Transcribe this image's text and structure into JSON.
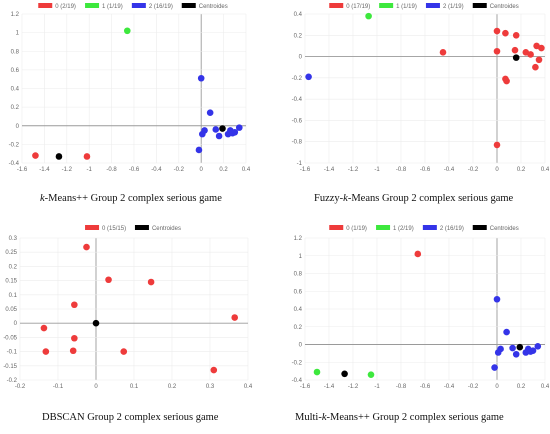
{
  "chart_data": [
    {
      "type": "scatter",
      "caption_parts": [
        {
          "text": "k",
          "italic": true
        },
        {
          "text": "-Means++ Group 2 complex serious game",
          "italic": false
        }
      ],
      "legend": [
        {
          "label": "0 (2/19)",
          "color": "#ee3b3b"
        },
        {
          "label": "1 (1/19)",
          "color": "#3de83d"
        },
        {
          "label": "2 (16/19)",
          "color": "#3434e8"
        },
        {
          "label": "Centroides",
          "color": "#000000"
        }
      ],
      "xlim": [
        -1.6,
        0.4
      ],
      "ylim": [
        -0.4,
        1.2
      ],
      "xticks": [
        -1.6,
        -1.4,
        -1.2,
        -1.0,
        -0.8,
        -0.6,
        -0.4,
        -0.2,
        0,
        0.2,
        0.4
      ],
      "yticks": [
        -0.4,
        -0.2,
        0,
        0.2,
        0.4,
        0.6,
        0.8,
        1.0,
        1.2
      ],
      "xtick_labels": [
        "-1.6",
        "-1.4",
        "-1.2",
        "-1",
        "-0.8",
        "-0.6",
        "-0.4",
        "-0.2",
        "0",
        "0.2",
        "0.4"
      ],
      "ytick_labels": [
        "-0.4",
        "-0.2",
        "0",
        "0.2",
        "0.4",
        "0.6",
        "0.8",
        "1",
        "1.2"
      ],
      "points": [
        {
          "x": -1.48,
          "y": -0.32,
          "c": 0
        },
        {
          "x": -1.02,
          "y": -0.33,
          "c": 0
        },
        {
          "x": -0.66,
          "y": 1.02,
          "c": 1
        },
        {
          "x": 0.0,
          "y": 0.51,
          "c": 2
        },
        {
          "x": 0.08,
          "y": 0.14,
          "c": 2
        },
        {
          "x": 0.03,
          "y": -0.05,
          "c": 2
        },
        {
          "x": 0.01,
          "y": -0.09,
          "c": 2
        },
        {
          "x": -0.02,
          "y": -0.26,
          "c": 2
        },
        {
          "x": 0.13,
          "y": -0.04,
          "c": 2
        },
        {
          "x": 0.16,
          "y": -0.11,
          "c": 2
        },
        {
          "x": 0.24,
          "y": -0.09,
          "c": 2
        },
        {
          "x": 0.26,
          "y": -0.05,
          "c": 2
        },
        {
          "x": 0.3,
          "y": -0.07,
          "c": 2
        },
        {
          "x": 0.34,
          "y": -0.02,
          "c": 2
        },
        {
          "x": 0.28,
          "y": -0.08,
          "c": 2
        }
      ],
      "centroids": [
        {
          "x": -1.27,
          "y": -0.33
        },
        {
          "x": 0.19,
          "y": -0.03
        }
      ]
    },
    {
      "type": "scatter",
      "caption_parts": [
        {
          "text": "Fuzzy-",
          "italic": false
        },
        {
          "text": "k",
          "italic": true
        },
        {
          "text": "-Means Group 2 complex serious game",
          "italic": false
        }
      ],
      "legend": [
        {
          "label": "0 (17/19)",
          "color": "#ee3b3b"
        },
        {
          "label": "1 (1/19)",
          "color": "#3de83d"
        },
        {
          "label": "2 (1/19)",
          "color": "#3434e8"
        },
        {
          "label": "Centroides",
          "color": "#000000"
        }
      ],
      "xlim": [
        -1.6,
        0.4
      ],
      "ylim": [
        -1.0,
        0.4
      ],
      "xticks": [
        -1.6,
        -1.4,
        -1.2,
        -1.0,
        -0.8,
        -0.6,
        -0.4,
        -0.2,
        0,
        0.2,
        0.4
      ],
      "yticks": [
        -1.0,
        -0.8,
        -0.6,
        -0.4,
        -0.2,
        0,
        0.2,
        0.4
      ],
      "xtick_labels": [
        "-1.6",
        "-1.4",
        "-1.2",
        "-1",
        "-0.8",
        "-0.6",
        "-0.4",
        "-0.2",
        "0",
        "0.2",
        "0.4"
      ],
      "ytick_labels": [
        "-1",
        "-0.8",
        "-0.6",
        "-0.4",
        "-0.2",
        "0",
        "0.2",
        "0.4"
      ],
      "points": [
        {
          "x": -1.57,
          "y": -0.19,
          "c": 2
        },
        {
          "x": -1.07,
          "y": 0.38,
          "c": 1
        },
        {
          "x": -0.45,
          "y": 0.04,
          "c": 0
        },
        {
          "x": 0.0,
          "y": 0.24,
          "c": 0
        },
        {
          "x": 0.07,
          "y": 0.22,
          "c": 0
        },
        {
          "x": 0.16,
          "y": 0.2,
          "c": 0
        },
        {
          "x": 0.0,
          "y": 0.05,
          "c": 0
        },
        {
          "x": 0.15,
          "y": 0.06,
          "c": 0
        },
        {
          "x": 0.24,
          "y": 0.04,
          "c": 0
        },
        {
          "x": 0.28,
          "y": 0.02,
          "c": 0
        },
        {
          "x": 0.33,
          "y": 0.1,
          "c": 0
        },
        {
          "x": 0.37,
          "y": 0.08,
          "c": 0
        },
        {
          "x": 0.35,
          "y": -0.03,
          "c": 0
        },
        {
          "x": 0.32,
          "y": -0.1,
          "c": 0
        },
        {
          "x": 0.07,
          "y": -0.21,
          "c": 0
        },
        {
          "x": 0.08,
          "y": -0.23,
          "c": 0
        },
        {
          "x": 0.0,
          "y": -0.83,
          "c": 0
        }
      ],
      "centroids": [
        {
          "x": 0.16,
          "y": -0.01
        }
      ]
    },
    {
      "type": "scatter",
      "caption_parts": [
        {
          "text": "DBSCAN Group 2 complex serious game",
          "italic": false
        }
      ],
      "legend": [
        {
          "label": "0 (15/15)",
          "color": "#ee3b3b"
        },
        {
          "label": "Centroides",
          "color": "#000000"
        }
      ],
      "xlim": [
        -0.2,
        0.4
      ],
      "ylim": [
        -0.2,
        0.3
      ],
      "xticks": [
        -0.2,
        -0.1,
        0,
        0.1,
        0.2,
        0.3,
        0.4
      ],
      "yticks": [
        -0.2,
        -0.15,
        -0.1,
        -0.05,
        0,
        0.05,
        0.1,
        0.15,
        0.2,
        0.25,
        0.3
      ],
      "xtick_labels": [
        "-0.2",
        "-0.1",
        "0",
        "0.1",
        "0.2",
        "0.3",
        "0.4"
      ],
      "ytick_labels": [
        "-0.2",
        "-0.15",
        "-0.1",
        "-0.05",
        "0",
        "0.05",
        "0.1",
        "0.15",
        "0.2",
        "0.25",
        "0.3"
      ],
      "points": [
        {
          "x": -0.025,
          "y": 0.268,
          "c": 0
        },
        {
          "x": 0.033,
          "y": 0.153,
          "c": 0
        },
        {
          "x": 0.145,
          "y": 0.145,
          "c": 0
        },
        {
          "x": -0.057,
          "y": 0.065,
          "c": 0
        },
        {
          "x": 0.365,
          "y": 0.02,
          "c": 0
        },
        {
          "x": -0.137,
          "y": -0.017,
          "c": 0
        },
        {
          "x": -0.057,
          "y": -0.053,
          "c": 0
        },
        {
          "x": -0.132,
          "y": -0.1,
          "c": 0
        },
        {
          "x": -0.06,
          "y": -0.097,
          "c": 0
        },
        {
          "x": 0.073,
          "y": -0.1,
          "c": 0
        },
        {
          "x": 0.31,
          "y": -0.165,
          "c": 0
        }
      ],
      "centroids": [
        {
          "x": 0.0,
          "y": 0.0
        }
      ]
    },
    {
      "type": "scatter",
      "caption_parts": [
        {
          "text": "Multi-",
          "italic": false
        },
        {
          "text": "k",
          "italic": true
        },
        {
          "text": "-Means++ Group 2 complex serious game",
          "italic": false
        }
      ],
      "legend": [
        {
          "label": "0 (1/19)",
          "color": "#ee3b3b"
        },
        {
          "label": "1 (2/19)",
          "color": "#3de83d"
        },
        {
          "label": "2 (16/19)",
          "color": "#3434e8"
        },
        {
          "label": "Centroides",
          "color": "#000000"
        }
      ],
      "xlim": [
        -1.6,
        0.4
      ],
      "ylim": [
        -0.4,
        1.2
      ],
      "xticks": [
        -1.6,
        -1.4,
        -1.2,
        -1.0,
        -0.8,
        -0.6,
        -0.4,
        -0.2,
        0,
        0.2,
        0.4
      ],
      "yticks": [
        -0.4,
        -0.2,
        0,
        0.2,
        0.4,
        0.6,
        0.8,
        1.0,
        1.2
      ],
      "xtick_labels": [
        "-1.6",
        "-1.4",
        "-1.2",
        "-1",
        "-0.8",
        "-0.6",
        "-0.4",
        "-0.2",
        "0",
        "0.2",
        "0.4"
      ],
      "ytick_labels": [
        "-0.4",
        "-0.2",
        "0",
        "0.2",
        "0.4",
        "0.6",
        "0.8",
        "1",
        "1.2"
      ],
      "points": [
        {
          "x": -0.66,
          "y": 1.02,
          "c": 0
        },
        {
          "x": -1.5,
          "y": -0.31,
          "c": 1
        },
        {
          "x": -1.05,
          "y": -0.34,
          "c": 1
        },
        {
          "x": 0.0,
          "y": 0.51,
          "c": 2
        },
        {
          "x": 0.08,
          "y": 0.14,
          "c": 2
        },
        {
          "x": 0.03,
          "y": -0.05,
          "c": 2
        },
        {
          "x": 0.01,
          "y": -0.09,
          "c": 2
        },
        {
          "x": -0.02,
          "y": -0.26,
          "c": 2
        },
        {
          "x": 0.13,
          "y": -0.04,
          "c": 2
        },
        {
          "x": 0.16,
          "y": -0.11,
          "c": 2
        },
        {
          "x": 0.24,
          "y": -0.09,
          "c": 2
        },
        {
          "x": 0.26,
          "y": -0.05,
          "c": 2
        },
        {
          "x": 0.3,
          "y": -0.07,
          "c": 2
        },
        {
          "x": 0.34,
          "y": -0.02,
          "c": 2
        },
        {
          "x": 0.28,
          "y": -0.08,
          "c": 2
        }
      ],
      "centroids": [
        {
          "x": -1.27,
          "y": -0.33
        },
        {
          "x": 0.19,
          "y": -0.03
        }
      ]
    }
  ]
}
